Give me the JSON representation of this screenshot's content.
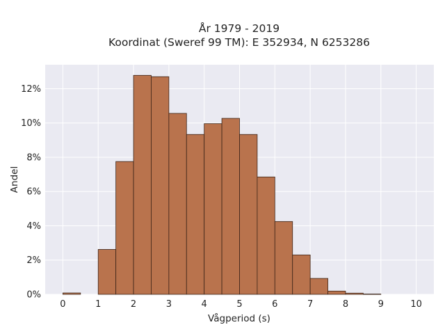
{
  "chart_data": {
    "type": "bar",
    "title": "År 1979 - 2019",
    "subtitle": "Koordinat (Sweref 99 TM): E 352934, N 6253286",
    "xlabel": "Vågperiod (s)",
    "ylabel": "Andel",
    "xlim": [
      -0.5,
      10.5
    ],
    "ylim": [
      0,
      0.134
    ],
    "xticks": [
      {
        "value": 0,
        "label": "0"
      },
      {
        "value": 1,
        "label": "1"
      },
      {
        "value": 2,
        "label": "2"
      },
      {
        "value": 3,
        "label": "3"
      },
      {
        "value": 4,
        "label": "4"
      },
      {
        "value": 5,
        "label": "5"
      },
      {
        "value": 6,
        "label": "6"
      },
      {
        "value": 7,
        "label": "7"
      },
      {
        "value": 8,
        "label": "8"
      },
      {
        "value": 9,
        "label": "9"
      },
      {
        "value": 10,
        "label": "10"
      }
    ],
    "yticks": [
      {
        "value": 0,
        "label": "0%"
      },
      {
        "value": 0.02,
        "label": "2%"
      },
      {
        "value": 0.04,
        "label": "4%"
      },
      {
        "value": 0.06,
        "label": "6%"
      },
      {
        "value": 0.08,
        "label": "8%"
      },
      {
        "value": 0.1,
        "label": "10%"
      },
      {
        "value": 0.12,
        "label": "12%"
      }
    ],
    "bins": [
      {
        "x0": 0.0,
        "x1": 0.5,
        "value": 0.0008
      },
      {
        "x0": 0.5,
        "x1": 1.0,
        "value": 0.0
      },
      {
        "x0": 1.0,
        "x1": 1.5,
        "value": 0.0262
      },
      {
        "x0": 1.5,
        "x1": 2.0,
        "value": 0.0775
      },
      {
        "x0": 2.0,
        "x1": 2.5,
        "value": 0.1278
      },
      {
        "x0": 2.5,
        "x1": 3.0,
        "value": 0.127
      },
      {
        "x0": 3.0,
        "x1": 3.5,
        "value": 0.1056
      },
      {
        "x0": 3.5,
        "x1": 4.0,
        "value": 0.0933
      },
      {
        "x0": 4.0,
        "x1": 4.5,
        "value": 0.0996
      },
      {
        "x0": 4.5,
        "x1": 5.0,
        "value": 0.1027
      },
      {
        "x0": 5.0,
        "x1": 5.5,
        "value": 0.0933
      },
      {
        "x0": 5.5,
        "x1": 6.0,
        "value": 0.0685
      },
      {
        "x0": 6.0,
        "x1": 6.5,
        "value": 0.0425
      },
      {
        "x0": 6.5,
        "x1": 7.0,
        "value": 0.023
      },
      {
        "x0": 7.0,
        "x1": 7.5,
        "value": 0.0093
      },
      {
        "x0": 7.5,
        "x1": 8.0,
        "value": 0.0019
      },
      {
        "x0": 8.0,
        "x1": 8.5,
        "value": 0.0007
      },
      {
        "x0": 8.5,
        "x1": 9.0,
        "value": 0.0002
      }
    ],
    "grid": true,
    "colors": {
      "bar_fill": "#b9734d",
      "bar_edge": "#3b2418",
      "plot_background": "#eaeaf2",
      "grid": "#ffffff"
    }
  }
}
